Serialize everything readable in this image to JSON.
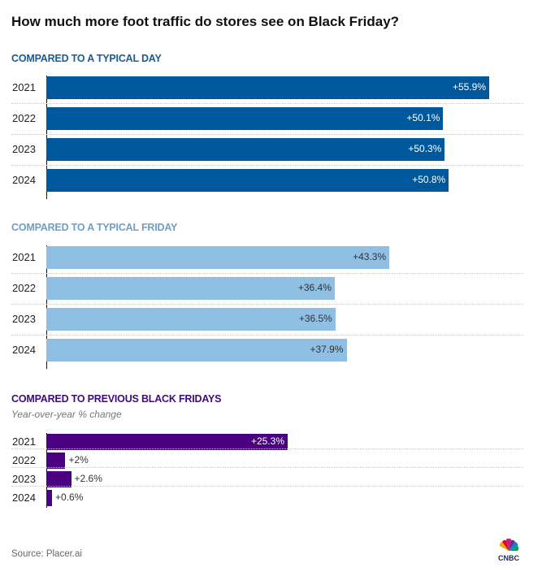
{
  "chart_data": [
    {
      "type": "bar",
      "orientation": "horizontal",
      "title": "COMPARED TO A TYPICAL DAY",
      "categories": [
        "2021",
        "2022",
        "2023",
        "2024"
      ],
      "values": [
        55.9,
        50.1,
        50.3,
        50.8
      ],
      "labels": [
        "+55.9%",
        "+50.1%",
        "+50.3%",
        "+50.8%"
      ],
      "color": "#00589c",
      "label_color": "#ffffff",
      "xlim": [
        0,
        56
      ]
    },
    {
      "type": "bar",
      "orientation": "horizontal",
      "title": "COMPARED TO A TYPICAL FRIDAY",
      "categories": [
        "2021",
        "2022",
        "2023",
        "2024"
      ],
      "values": [
        43.3,
        36.4,
        36.5,
        37.9
      ],
      "labels": [
        "+43.3%",
        "+36.4%",
        "+36.5%",
        "+37.9%"
      ],
      "color": "#8fbfe2",
      "label_color": "#333333",
      "xlim": [
        0,
        56
      ]
    },
    {
      "type": "bar",
      "orientation": "horizontal",
      "title": "COMPARED TO PREVIOUS BLACK FRIDAYS",
      "subtitle": "Year-over-year % change",
      "categories": [
        "2021",
        "2022",
        "2023",
        "2024"
      ],
      "values": [
        25.3,
        2.0,
        2.6,
        0.6
      ],
      "labels": [
        "+25.3%",
        "+2%",
        "+2.6%",
        "+0.6%"
      ],
      "color": "#4b0082",
      "label_color": "#ffffff",
      "xlim": [
        0,
        47
      ]
    }
  ],
  "header": {
    "title": "How much more foot traffic do stores see on Black Friday?"
  },
  "colors": {
    "day_title": "#1a5c96",
    "friday_title": "#6f9fc4",
    "prev_title": "#3d0c7a"
  },
  "footer": {
    "source": "Source: Placer.ai",
    "logo_text": "CNBC"
  }
}
